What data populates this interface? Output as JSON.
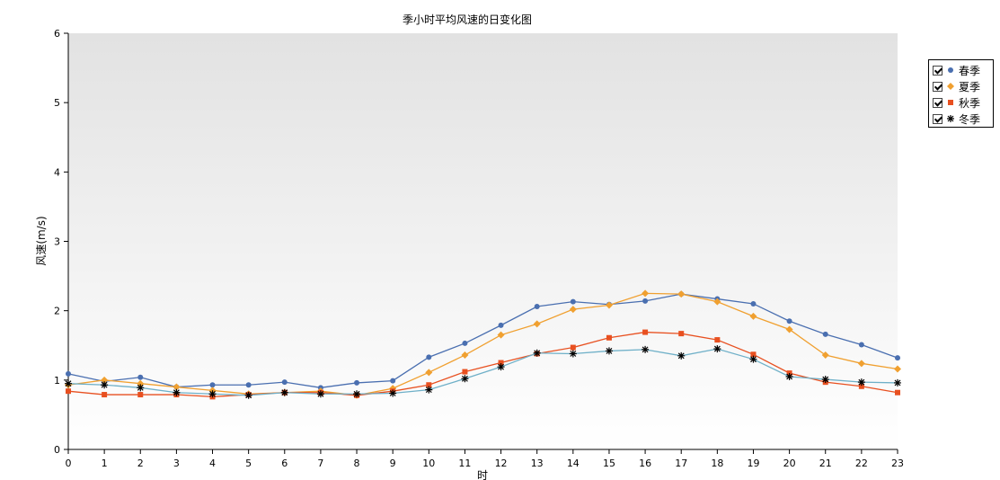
{
  "chart_data": {
    "type": "line",
    "title": "季小时平均风速的日变化图",
    "xlabel": "时",
    "ylabel": "风速(m/s)",
    "x": [
      0,
      1,
      2,
      3,
      4,
      5,
      6,
      7,
      8,
      9,
      10,
      11,
      12,
      13,
      14,
      15,
      16,
      17,
      18,
      19,
      20,
      21,
      22,
      23
    ],
    "xlim": [
      0,
      23
    ],
    "ylim": [
      0,
      6
    ],
    "yticks": [
      0,
      1,
      2,
      3,
      4,
      5,
      6
    ],
    "grid": false,
    "legend_position": "right",
    "series": [
      {
        "name": "春季",
        "color": "#4a6fb0",
        "marker": "circle",
        "values": [
          1.09,
          0.98,
          1.04,
          0.9,
          0.93,
          0.93,
          0.97,
          0.89,
          0.96,
          0.99,
          1.33,
          1.53,
          1.79,
          2.06,
          2.13,
          2.09,
          2.14,
          2.24,
          2.17,
          2.1,
          1.85,
          1.66,
          1.51,
          1.32
        ]
      },
      {
        "name": "夏季",
        "color": "#f0a030",
        "marker": "diamond",
        "values": [
          0.93,
          1.0,
          0.95,
          0.9,
          0.85,
          0.8,
          0.82,
          0.84,
          0.78,
          0.88,
          1.11,
          1.36,
          1.65,
          1.81,
          2.02,
          2.08,
          2.25,
          2.24,
          2.13,
          1.92,
          1.73,
          1.36,
          1.24,
          1.16
        ]
      },
      {
        "name": "秋季",
        "color": "#e85020",
        "marker": "square",
        "values": [
          0.84,
          0.79,
          0.79,
          0.79,
          0.76,
          0.79,
          0.82,
          0.82,
          0.78,
          0.84,
          0.93,
          1.12,
          1.25,
          1.38,
          1.47,
          1.61,
          1.69,
          1.67,
          1.58,
          1.37,
          1.1,
          0.97,
          0.91,
          0.82
        ]
      },
      {
        "name": "冬季",
        "color": "#6fb0c8",
        "marker": "star",
        "values": [
          0.95,
          0.93,
          0.89,
          0.82,
          0.8,
          0.78,
          0.82,
          0.8,
          0.8,
          0.81,
          0.86,
          1.02,
          1.19,
          1.39,
          1.38,
          1.42,
          1.44,
          1.35,
          1.45,
          1.3,
          1.05,
          1.01,
          0.97,
          0.96
        ]
      }
    ]
  }
}
